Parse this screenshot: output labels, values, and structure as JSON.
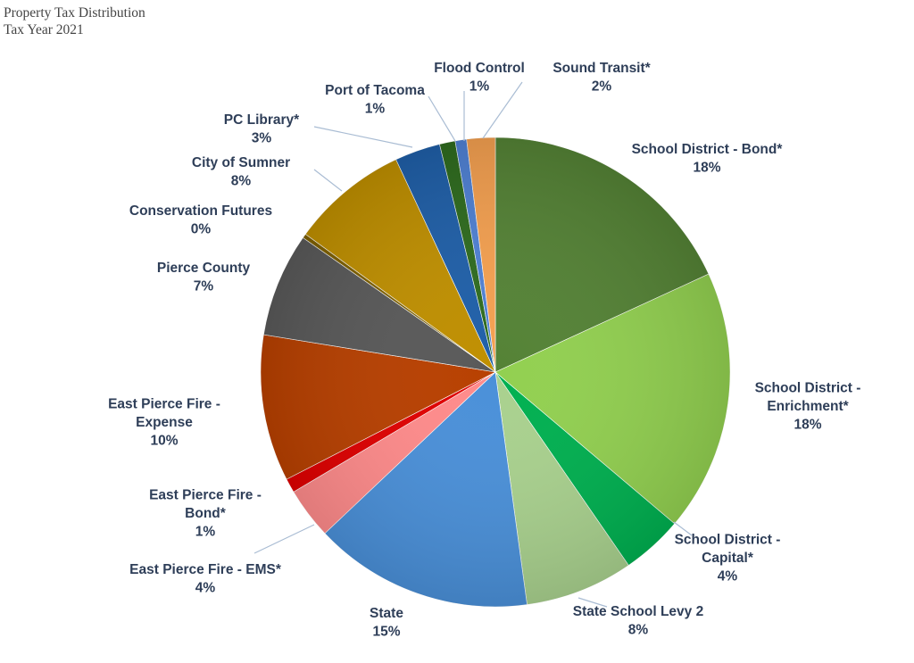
{
  "chart_data": {
    "type": "pie",
    "title": "Property Tax Distribution",
    "subtitle": "Tax Year 2021",
    "start_angle_deg": 0,
    "direction": "clockwise",
    "slices": [
      {
        "name": "School District - Bond*",
        "label_lines": [
          "School District - Bond*"
        ],
        "pct_label": "18%",
        "value": 18.5,
        "color": "#548235"
      },
      {
        "name": "School District - Enrichment*",
        "label_lines": [
          "School District -",
          "Enrichment*"
        ],
        "pct_label": "18%",
        "value": 18.4,
        "color": "#92d050"
      },
      {
        "name": "School District - Capital*",
        "label_lines": [
          "School District -",
          "Capital*"
        ],
        "pct_label": "4%",
        "value": 4.3,
        "color": "#00b050"
      },
      {
        "name": "State School Levy 2",
        "label_lines": [
          "State School Levy 2"
        ],
        "pct_label": "8%",
        "value": 7.6,
        "color": "#a9d18e"
      },
      {
        "name": "State",
        "label_lines": [
          "State"
        ],
        "pct_label": "15%",
        "value": 15.4,
        "color": "#4a90d9"
      },
      {
        "name": "East Pierce Fire - EMS*",
        "label_lines": [
          "East Pierce Fire - EMS*"
        ],
        "pct_label": "4%",
        "value": 3.6,
        "color": "#ff8b8b"
      },
      {
        "name": "East Pierce Fire - Bond*",
        "label_lines": [
          "East Pierce Fire -",
          "Bond*"
        ],
        "pct_label": "1%",
        "value": 1.0,
        "color": "#e00000"
      },
      {
        "name": "East Pierce Fire - Expense",
        "label_lines": [
          "East Pierce Fire -",
          "Expense"
        ],
        "pct_label": "10%",
        "value": 10.3,
        "color": "#b84000"
      },
      {
        "name": "Pierce County",
        "label_lines": [
          "Pierce County"
        ],
        "pct_label": "7%",
        "value": 7.3,
        "color": "#595959"
      },
      {
        "name": "Conservation Futures",
        "label_lines": [
          "Conservation Futures"
        ],
        "pct_label": "0%",
        "value": 0.3,
        "color": "#7f6000"
      },
      {
        "name": "City of Sumner",
        "label_lines": [
          "City of Sumner"
        ],
        "pct_label": "8%",
        "value": 8.2,
        "color": "#bf8f00"
      },
      {
        "name": "PC Library*",
        "label_lines": [
          "PC Library*"
        ],
        "pct_label": "3%",
        "value": 3.2,
        "color": "#1f5fa8"
      },
      {
        "name": "Port of Tacoma",
        "label_lines": [
          "Port of Tacoma"
        ],
        "pct_label": "1%",
        "value": 1.1,
        "color": "#2e6b1e"
      },
      {
        "name": "Flood Control",
        "label_lines": [
          "Flood Control"
        ],
        "pct_label": "1%",
        "value": 0.8,
        "color": "#4f81d4"
      },
      {
        "name": "Sound Transit*",
        "label_lines": [
          "Sound Transit*"
        ],
        "pct_label": "2%",
        "value": 2.0,
        "color": "#f4a050"
      }
    ]
  }
}
